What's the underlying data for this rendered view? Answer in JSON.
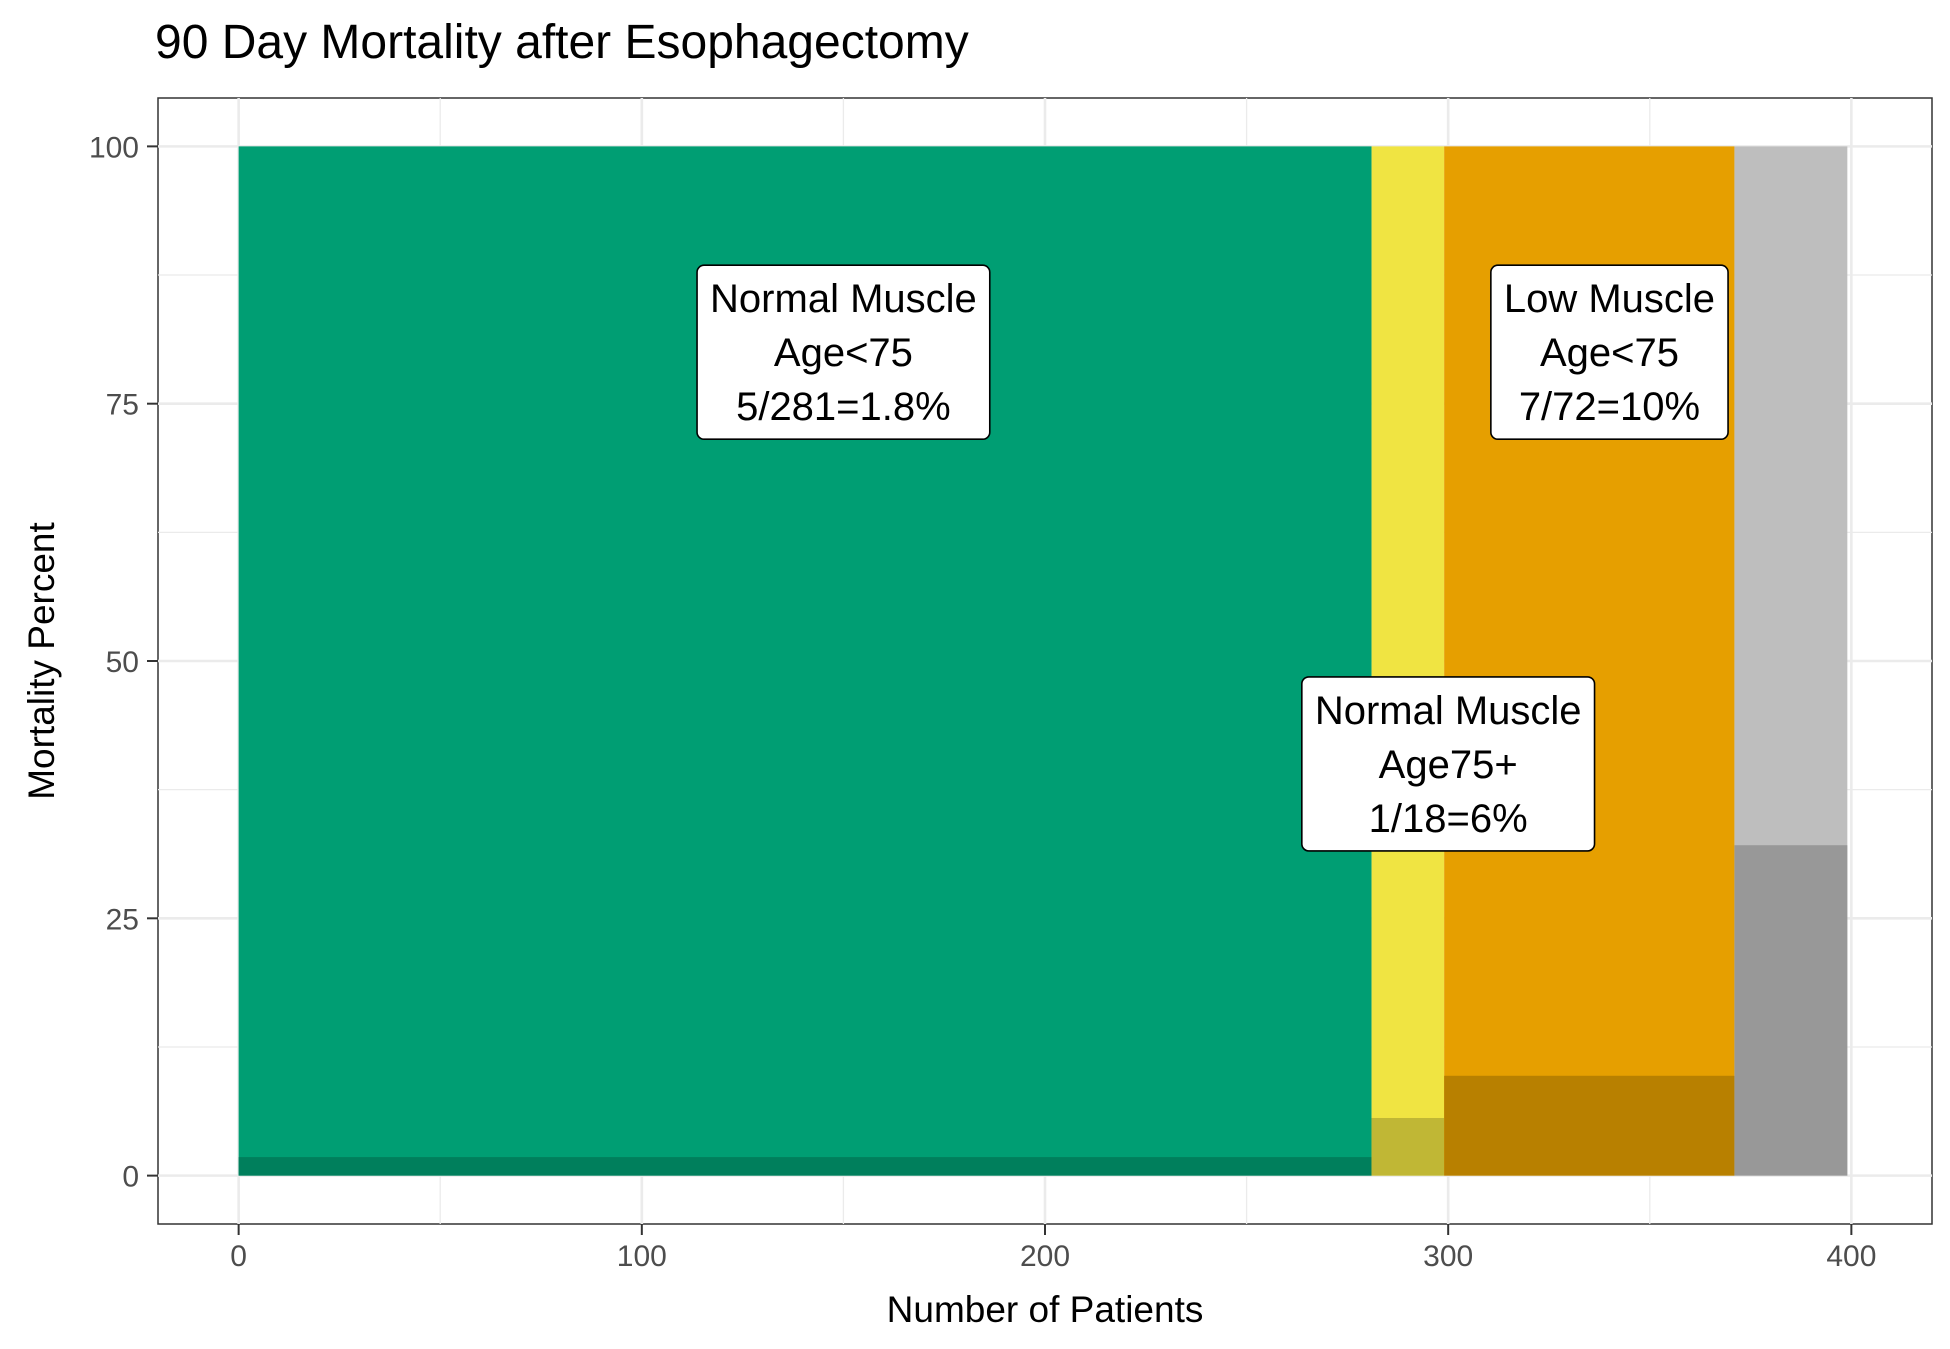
{
  "chart_data": {
    "type": "bar",
    "title": "90 Day Mortality after Esophagectomy",
    "xlabel": "Number of Patients",
    "ylabel": "Mortality Percent",
    "xlim": [
      -20,
      420
    ],
    "ylim": [
      -4.7,
      104.7
    ],
    "x_ticks": [
      0,
      100,
      200,
      300,
      400
    ],
    "y_ticks": [
      0,
      25,
      50,
      75,
      100
    ],
    "grid": true,
    "series": [
      {
        "x_start": 0,
        "x_end": 281,
        "total": 100,
        "mortality": 1.8,
        "color": "#009E73",
        "dark_color": "#007F5C"
      },
      {
        "x_start": 281,
        "x_end": 299,
        "total": 100,
        "mortality": 5.6,
        "color": "#F0E442",
        "dark_color": "#C0B735"
      },
      {
        "x_start": 299,
        "x_end": 371,
        "total": 100,
        "mortality": 9.7,
        "color": "#E69F00",
        "dark_color": "#B88000"
      },
      {
        "x_start": 371,
        "x_end": 399,
        "total": 100,
        "mortality": 32.1,
        "color": "#BEBEBE",
        "dark_color": "#989898"
      }
    ],
    "annotations": [
      {
        "lines": [
          "Normal Muscle",
          "Age<75",
          "5/281=1.8%"
        ],
        "x": 150,
        "y": 80
      },
      {
        "lines": [
          "Low Muscle",
          "Age<75",
          "7/72=10%"
        ],
        "x": 340,
        "y": 80
      },
      {
        "lines": [
          "Normal Muscle",
          "Age75+",
          "1/18=6%"
        ],
        "x": 300,
        "y": 40
      }
    ]
  }
}
